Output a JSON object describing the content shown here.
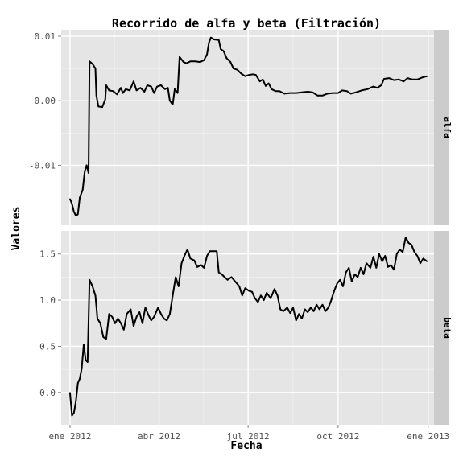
{
  "chart_data": {
    "type": "line",
    "title": "Recorrido de alfa y beta (Filtración)",
    "xlabel": "Fecha",
    "ylabel": "Valores",
    "x_ticks": [
      {
        "label": "ene 2012",
        "date": "2012-01-01"
      },
      {
        "label": "abr 2012",
        "date": "2012-04-01"
      },
      {
        "label": "jul 2012",
        "date": "2012-07-01"
      },
      {
        "label": "oct 2012",
        "date": "2012-10-01"
      },
      {
        "label": "ene 2013",
        "date": "2013-01-01"
      }
    ],
    "xlim": [
      "2011-12-23",
      "2013-01-07"
    ],
    "panels": [
      {
        "strip": "alfa",
        "ylim": [
          -0.0193,
          0.011
        ],
        "y_ticks": [
          {
            "label": "0.01",
            "value": 0.01
          },
          {
            "label": "0.00",
            "value": 0.0
          },
          {
            "label": "-0.01",
            "value": -0.01
          }
        ],
        "points": [
          [
            "2012-01-01",
            -0.0152
          ],
          [
            "2012-01-03",
            -0.016
          ],
          [
            "2012-01-05",
            -0.0172
          ],
          [
            "2012-01-07",
            -0.0178
          ],
          [
            "2012-01-09",
            -0.0176
          ],
          [
            "2012-01-11",
            -0.015
          ],
          [
            "2012-01-14",
            -0.0138
          ],
          [
            "2012-01-16",
            -0.011
          ],
          [
            "2012-01-18",
            -0.01
          ],
          [
            "2012-01-20",
            -0.0112
          ],
          [
            "2012-01-21",
            0.0061
          ],
          [
            "2012-01-24",
            0.0057
          ],
          [
            "2012-01-27",
            0.005
          ],
          [
            "2012-01-28",
            0.0008
          ],
          [
            "2012-01-30",
            -0.0009
          ],
          [
            "2012-02-03",
            -0.001
          ],
          [
            "2012-02-06",
            0.0002
          ],
          [
            "2012-02-07",
            0.0024
          ],
          [
            "2012-02-10",
            0.0016
          ],
          [
            "2012-02-14",
            0.0015
          ],
          [
            "2012-02-18",
            0.001
          ],
          [
            "2012-02-22",
            0.002
          ],
          [
            "2012-02-24",
            0.0012
          ],
          [
            "2012-02-27",
            0.0018
          ],
          [
            "2012-03-02",
            0.0016
          ],
          [
            "2012-03-06",
            0.003
          ],
          [
            "2012-03-09",
            0.0016
          ],
          [
            "2012-03-13",
            0.002
          ],
          [
            "2012-03-17",
            0.0014
          ],
          [
            "2012-03-20",
            0.0024
          ],
          [
            "2012-03-24",
            0.0022
          ],
          [
            "2012-03-27",
            0.0012
          ],
          [
            "2012-03-30",
            0.0022
          ],
          [
            "2012-04-03",
            0.0024
          ],
          [
            "2012-04-07",
            0.0018
          ],
          [
            "2012-04-10",
            0.002
          ],
          [
            "2012-04-12",
            0.0
          ],
          [
            "2012-04-15",
            -0.0006
          ],
          [
            "2012-04-17",
            0.0018
          ],
          [
            "2012-04-20",
            0.0012
          ],
          [
            "2012-04-22",
            0.0068
          ],
          [
            "2012-04-26",
            0.006
          ],
          [
            "2012-04-29",
            0.0058
          ],
          [
            "2012-05-03",
            0.0061
          ],
          [
            "2012-05-08",
            0.0061
          ],
          [
            "2012-05-13",
            0.006
          ],
          [
            "2012-05-17",
            0.0063
          ],
          [
            "2012-05-20",
            0.0072
          ],
          [
            "2012-05-22",
            0.009
          ],
          [
            "2012-05-24",
            0.0098
          ],
          [
            "2012-05-27",
            0.0095
          ],
          [
            "2012-06-01",
            0.0094
          ],
          [
            "2012-06-03",
            0.008
          ],
          [
            "2012-06-06",
            0.0077
          ],
          [
            "2012-06-09",
            0.0066
          ],
          [
            "2012-06-13",
            0.006
          ],
          [
            "2012-06-16",
            0.005
          ],
          [
            "2012-06-20",
            0.0048
          ],
          [
            "2012-06-24",
            0.0042
          ],
          [
            "2012-06-28",
            0.0038
          ],
          [
            "2012-07-02",
            0.004
          ],
          [
            "2012-07-06",
            0.0041
          ],
          [
            "2012-07-09",
            0.004
          ],
          [
            "2012-07-13",
            0.003
          ],
          [
            "2012-07-16",
            0.0033
          ],
          [
            "2012-07-19",
            0.0023
          ],
          [
            "2012-07-22",
            0.0027
          ],
          [
            "2012-07-25",
            0.0018
          ],
          [
            "2012-07-29",
            0.0015
          ],
          [
            "2012-08-02",
            0.0015
          ],
          [
            "2012-08-07",
            0.0011
          ],
          [
            "2012-08-13",
            0.0012
          ],
          [
            "2012-08-19",
            0.0012
          ],
          [
            "2012-08-25",
            0.0013
          ],
          [
            "2012-08-31",
            0.0014
          ],
          [
            "2012-09-05",
            0.0013
          ],
          [
            "2012-09-10",
            0.0008
          ],
          [
            "2012-09-15",
            0.0008
          ],
          [
            "2012-09-20",
            0.0011
          ],
          [
            "2012-09-26",
            0.0012
          ],
          [
            "2012-10-01",
            0.0012
          ],
          [
            "2012-10-05",
            0.0016
          ],
          [
            "2012-10-10",
            0.0015
          ],
          [
            "2012-10-14",
            0.0011
          ],
          [
            "2012-10-19",
            0.0013
          ],
          [
            "2012-10-25",
            0.0016
          ],
          [
            "2012-10-31",
            0.0018
          ],
          [
            "2012-11-06",
            0.0022
          ],
          [
            "2012-11-10",
            0.002
          ],
          [
            "2012-11-14",
            0.0024
          ],
          [
            "2012-11-17",
            0.0034
          ],
          [
            "2012-11-22",
            0.0035
          ],
          [
            "2012-11-27",
            0.0032
          ],
          [
            "2012-12-02",
            0.0033
          ],
          [
            "2012-12-07",
            0.003
          ],
          [
            "2012-12-11",
            0.0035
          ],
          [
            "2012-12-16",
            0.0033
          ],
          [
            "2012-12-21",
            0.0033
          ],
          [
            "2012-12-26",
            0.0036
          ],
          [
            "2012-12-31",
            0.0038
          ]
        ]
      },
      {
        "strip": "beta",
        "ylim": [
          -0.35,
          1.75
        ],
        "y_ticks": [
          {
            "label": "0.0",
            "value": 0.0
          },
          {
            "label": "0.5",
            "value": 0.5
          },
          {
            "label": "1.0",
            "value": 1.0
          },
          {
            "label": "1.5",
            "value": 1.5
          }
        ],
        "points": [
          [
            "2012-01-01",
            0.0
          ],
          [
            "2012-01-03",
            -0.25
          ],
          [
            "2012-01-05",
            -0.22
          ],
          [
            "2012-01-07",
            -0.1
          ],
          [
            "2012-01-09",
            0.1
          ],
          [
            "2012-01-11",
            0.15
          ],
          [
            "2012-01-13",
            0.26
          ],
          [
            "2012-01-15",
            0.52
          ],
          [
            "2012-01-17",
            0.35
          ],
          [
            "2012-01-19",
            0.33
          ],
          [
            "2012-01-21",
            1.22
          ],
          [
            "2012-01-24",
            1.15
          ],
          [
            "2012-01-27",
            1.05
          ],
          [
            "2012-01-29",
            0.8
          ],
          [
            "2012-02-01",
            0.75
          ],
          [
            "2012-02-04",
            0.6
          ],
          [
            "2012-02-07",
            0.58
          ],
          [
            "2012-02-10",
            0.85
          ],
          [
            "2012-02-13",
            0.82
          ],
          [
            "2012-02-16",
            0.75
          ],
          [
            "2012-02-19",
            0.8
          ],
          [
            "2012-02-22",
            0.75
          ],
          [
            "2012-02-25",
            0.68
          ],
          [
            "2012-02-28",
            0.85
          ],
          [
            "2012-03-03",
            0.9
          ],
          [
            "2012-03-06",
            0.72
          ],
          [
            "2012-03-09",
            0.82
          ],
          [
            "2012-03-12",
            0.87
          ],
          [
            "2012-03-15",
            0.75
          ],
          [
            "2012-03-18",
            0.92
          ],
          [
            "2012-03-21",
            0.84
          ],
          [
            "2012-03-24",
            0.78
          ],
          [
            "2012-03-27",
            0.82
          ],
          [
            "2012-03-31",
            0.92
          ],
          [
            "2012-04-03",
            0.85
          ],
          [
            "2012-04-06",
            0.8
          ],
          [
            "2012-04-09",
            0.78
          ],
          [
            "2012-04-12",
            0.85
          ],
          [
            "2012-04-15",
            1.05
          ],
          [
            "2012-04-18",
            1.25
          ],
          [
            "2012-04-21",
            1.15
          ],
          [
            "2012-04-24",
            1.4
          ],
          [
            "2012-04-27",
            1.48
          ],
          [
            "2012-04-30",
            1.55
          ],
          [
            "2012-05-03",
            1.45
          ],
          [
            "2012-05-07",
            1.43
          ],
          [
            "2012-05-10",
            1.36
          ],
          [
            "2012-05-14",
            1.38
          ],
          [
            "2012-05-17",
            1.35
          ],
          [
            "2012-05-20",
            1.48
          ],
          [
            "2012-05-23",
            1.53
          ],
          [
            "2012-05-27",
            1.53
          ],
          [
            "2012-05-30",
            1.53
          ],
          [
            "2012-06-01",
            1.3
          ],
          [
            "2012-06-04",
            1.28
          ],
          [
            "2012-06-07",
            1.25
          ],
          [
            "2012-06-10",
            1.22
          ],
          [
            "2012-06-14",
            1.25
          ],
          [
            "2012-06-18",
            1.2
          ],
          [
            "2012-06-22",
            1.15
          ],
          [
            "2012-06-25",
            1.05
          ],
          [
            "2012-06-28",
            1.13
          ],
          [
            "2012-07-02",
            1.1
          ],
          [
            "2012-07-05",
            1.09
          ],
          [
            "2012-07-08",
            1.02
          ],
          [
            "2012-07-11",
            0.98
          ],
          [
            "2012-07-14",
            1.05
          ],
          [
            "2012-07-17",
            1.0
          ],
          [
            "2012-07-20",
            1.08
          ],
          [
            "2012-07-24",
            1.02
          ],
          [
            "2012-07-28",
            1.12
          ],
          [
            "2012-07-31",
            1.05
          ],
          [
            "2012-08-03",
            0.9
          ],
          [
            "2012-08-06",
            0.88
          ],
          [
            "2012-08-10",
            0.92
          ],
          [
            "2012-08-13",
            0.86
          ],
          [
            "2012-08-16",
            0.92
          ],
          [
            "2012-08-19",
            0.78
          ],
          [
            "2012-08-22",
            0.85
          ],
          [
            "2012-08-25",
            0.8
          ],
          [
            "2012-08-28",
            0.9
          ],
          [
            "2012-08-31",
            0.87
          ],
          [
            "2012-09-03",
            0.92
          ],
          [
            "2012-09-06",
            0.88
          ],
          [
            "2012-09-09",
            0.95
          ],
          [
            "2012-09-12",
            0.9
          ],
          [
            "2012-09-15",
            0.95
          ],
          [
            "2012-09-18",
            0.88
          ],
          [
            "2012-09-21",
            0.92
          ],
          [
            "2012-09-24",
            1.0
          ],
          [
            "2012-09-27",
            1.1
          ],
          [
            "2012-09-30",
            1.18
          ],
          [
            "2012-10-03",
            1.22
          ],
          [
            "2012-10-06",
            1.15
          ],
          [
            "2012-10-09",
            1.3
          ],
          [
            "2012-10-12",
            1.35
          ],
          [
            "2012-10-15",
            1.2
          ],
          [
            "2012-10-18",
            1.28
          ],
          [
            "2012-10-21",
            1.25
          ],
          [
            "2012-10-24",
            1.35
          ],
          [
            "2012-10-27",
            1.28
          ],
          [
            "2012-10-30",
            1.4
          ],
          [
            "2012-11-03",
            1.35
          ],
          [
            "2012-11-06",
            1.47
          ],
          [
            "2012-11-09",
            1.35
          ],
          [
            "2012-11-12",
            1.5
          ],
          [
            "2012-11-15",
            1.42
          ],
          [
            "2012-11-18",
            1.48
          ],
          [
            "2012-11-21",
            1.36
          ],
          [
            "2012-11-24",
            1.38
          ],
          [
            "2012-11-27",
            1.33
          ],
          [
            "2012-11-30",
            1.5
          ],
          [
            "2012-12-03",
            1.55
          ],
          [
            "2012-12-06",
            1.52
          ],
          [
            "2012-12-09",
            1.68
          ],
          [
            "2012-12-12",
            1.62
          ],
          [
            "2012-12-15",
            1.6
          ],
          [
            "2012-12-18",
            1.52
          ],
          [
            "2012-12-21",
            1.48
          ],
          [
            "2012-12-24",
            1.4
          ],
          [
            "2012-12-27",
            1.45
          ],
          [
            "2012-12-31",
            1.42
          ]
        ]
      }
    ],
    "grid": true,
    "legend": "none",
    "colors": {
      "panel_bg": "#e5e5e5",
      "strip_bg": "#cccccc",
      "grid_major": "#ffffff",
      "grid_minor": "#f2f2f2",
      "line": "#000000"
    }
  }
}
